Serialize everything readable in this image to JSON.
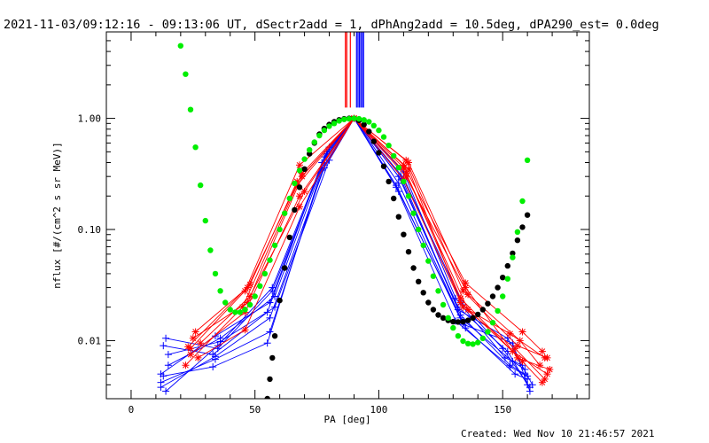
{
  "chart_data": {
    "type": "scatter",
    "title": "2021-11-03/09:12:16 - 09:13:06 UT, dSectr2add = 1, dPhAng2add = 10.5deg, dPA290_est=  0.0deg",
    "xlabel": "PA [deg]",
    "ylabel": "nflux [#/(cm^2 s sr MeV)]",
    "xlim": [
      -10,
      185
    ],
    "ylim": [
      0.003,
      6.0
    ],
    "yscale": "log",
    "grid": false,
    "xticks": [
      {
        "v": 0,
        "label": "0"
      },
      {
        "v": 50,
        "label": "50"
      },
      {
        "v": 100,
        "label": "100"
      },
      {
        "v": 150,
        "label": "150"
      }
    ],
    "yticks": [
      {
        "v": 0.01,
        "label": "0.01"
      },
      {
        "v": 0.1,
        "label": "0.10"
      },
      {
        "v": 1.0,
        "label": "1.00"
      }
    ],
    "colors": {
      "red": "#ff0000",
      "blue": "#0000ff",
      "green": "#00ee00",
      "black": "#000000"
    },
    "red_lines": [
      {
        "pa": [
          24,
          46,
          68,
          90,
          111,
          134,
          156,
          168
        ],
        "flux": [
          0.0085,
          0.028,
          0.38,
          1.0,
          0.42,
          0.028,
          0.009,
          0.007
        ]
      },
      {
        "pa": [
          26,
          47,
          69,
          90,
          110,
          135,
          158,
          166
        ],
        "flux": [
          0.012,
          0.03,
          0.32,
          1.0,
          0.38,
          0.033,
          0.012,
          0.008
        ]
      },
      {
        "pa": [
          22,
          45,
          67,
          90,
          112,
          133,
          154,
          168
        ],
        "flux": [
          0.006,
          0.02,
          0.25,
          1.0,
          0.35,
          0.022,
          0.008,
          0.005
        ]
      },
      {
        "pa": [
          28,
          48,
          70,
          90,
          111,
          136,
          157,
          165
        ],
        "flux": [
          0.0095,
          0.025,
          0.22,
          1.0,
          0.3,
          0.026,
          0.01,
          0.006
        ]
      },
      {
        "pa": [
          24,
          46,
          68,
          90,
          110,
          134,
          155,
          167
        ],
        "flux": [
          0.0075,
          0.018,
          0.2,
          1.0,
          0.28,
          0.02,
          0.0085,
          0.0045
        ]
      },
      {
        "pa": [
          25,
          47,
          69,
          90,
          112,
          135,
          156,
          169
        ],
        "flux": [
          0.0105,
          0.022,
          0.3,
          1.0,
          0.4,
          0.03,
          0.007,
          0.0055
        ]
      },
      {
        "pa": [
          27,
          46,
          68,
          90,
          111,
          133,
          158,
          166
        ],
        "flux": [
          0.007,
          0.0125,
          0.16,
          1.0,
          0.32,
          0.024,
          0.0065,
          0.0042
        ]
      },
      {
        "pa": [
          23,
          48,
          67,
          90,
          110,
          136,
          153,
          167
        ],
        "flux": [
          0.0088,
          0.032,
          0.27,
          1.0,
          0.36,
          0.019,
          0.0115,
          0.007
        ]
      }
    ],
    "blue_lines": [
      {
        "pa": [
          12,
          34,
          56,
          78,
          90,
          108,
          132,
          152,
          160
        ],
        "flux": [
          0.005,
          0.011,
          0.022,
          0.45,
          1.0,
          0.3,
          0.02,
          0.008,
          0.004
        ]
      },
      {
        "pa": [
          14,
          35,
          57,
          79,
          90,
          109,
          133,
          153,
          159
        ],
        "flux": [
          0.0035,
          0.009,
          0.03,
          0.5,
          1.0,
          0.28,
          0.017,
          0.006,
          0.005
        ]
      },
      {
        "pa": [
          13,
          33,
          55,
          77,
          90,
          107,
          134,
          154,
          161
        ],
        "flux": [
          0.009,
          0.0075,
          0.018,
          0.4,
          1.0,
          0.25,
          0.014,
          0.0095,
          0.0035
        ]
      },
      {
        "pa": [
          15,
          36,
          58,
          80,
          90,
          110,
          131,
          151,
          158
        ],
        "flux": [
          0.006,
          0.0105,
          0.025,
          0.55,
          1.0,
          0.33,
          0.024,
          0.007,
          0.006
        ]
      },
      {
        "pa": [
          12,
          34,
          56,
          78,
          90,
          108,
          135,
          155,
          160
        ],
        "flux": [
          0.0042,
          0.0068,
          0.012,
          0.38,
          1.0,
          0.22,
          0.013,
          0.005,
          0.0045
        ]
      },
      {
        "pa": [
          14,
          35,
          57,
          79,
          90,
          109,
          132,
          152,
          162
        ],
        "flux": [
          0.0105,
          0.0085,
          0.028,
          0.48,
          1.0,
          0.3,
          0.019,
          0.0105,
          0.004
        ]
      },
      {
        "pa": [
          13,
          33,
          55,
          77,
          90,
          108,
          133,
          154,
          159
        ],
        "flux": [
          0.0048,
          0.0058,
          0.0095,
          0.35,
          1.0,
          0.26,
          0.016,
          0.0065,
          0.0055
        ]
      },
      {
        "pa": [
          15,
          36,
          58,
          80,
          90,
          110,
          134,
          150,
          161
        ],
        "flux": [
          0.0075,
          0.0098,
          0.02,
          0.42,
          1.0,
          0.29,
          0.021,
          0.0085,
          0.0038
        ]
      },
      {
        "pa": [
          12,
          34,
          56,
          78,
          90,
          107,
          131,
          153,
          160
        ],
        "flux": [
          0.0038,
          0.0072,
          0.016,
          0.36,
          1.0,
          0.24,
          0.015,
          0.0058,
          0.0048
        ]
      }
    ],
    "green_fit": {
      "pa": [
        20,
        22,
        24,
        26,
        28,
        30,
        32,
        34,
        36,
        38,
        40,
        42,
        44,
        46,
        48,
        50,
        52,
        54,
        56,
        58,
        60,
        62,
        64,
        66,
        68,
        70,
        72,
        74,
        76,
        78,
        80,
        82,
        84,
        86,
        88,
        90,
        92,
        94,
        96,
        98,
        100,
        102,
        104,
        106,
        108,
        110,
        112,
        114,
        116,
        118,
        120,
        122,
        124,
        126,
        128,
        130,
        132,
        134,
        136,
        138,
        140,
        142,
        144,
        146,
        148,
        150,
        152,
        154,
        156,
        158,
        160
      ],
      "flux": [
        4.5,
        2.5,
        1.2,
        0.55,
        0.25,
        0.12,
        0.065,
        0.04,
        0.028,
        0.022,
        0.019,
        0.018,
        0.018,
        0.019,
        0.021,
        0.025,
        0.031,
        0.04,
        0.053,
        0.072,
        0.1,
        0.14,
        0.19,
        0.26,
        0.34,
        0.43,
        0.52,
        0.61,
        0.7,
        0.78,
        0.85,
        0.9,
        0.95,
        0.98,
        0.99,
        1.0,
        0.99,
        0.97,
        0.93,
        0.86,
        0.78,
        0.68,
        0.57,
        0.46,
        0.36,
        0.27,
        0.2,
        0.14,
        0.1,
        0.072,
        0.052,
        0.038,
        0.028,
        0.021,
        0.016,
        0.013,
        0.011,
        0.0099,
        0.0094,
        0.0093,
        0.0096,
        0.0105,
        0.012,
        0.0145,
        0.0185,
        0.025,
        0.036,
        0.056,
        0.095,
        0.18,
        0.42
      ]
    },
    "black_fit": {
      "pa": [
        55,
        56,
        57,
        58,
        60,
        62,
        64,
        66,
        68,
        70,
        72,
        74,
        76,
        78,
        80,
        82,
        84,
        86,
        88,
        90,
        92,
        94,
        96,
        98,
        100,
        102,
        104,
        106,
        108,
        110,
        112,
        114,
        116,
        118,
        120,
        122,
        124,
        126,
        128,
        130,
        132,
        134,
        136,
        138,
        140,
        142,
        144,
        146,
        148,
        150,
        152,
        154,
        156,
        158,
        160
      ],
      "flux": [
        0.003,
        0.0045,
        0.007,
        0.011,
        0.023,
        0.045,
        0.085,
        0.15,
        0.24,
        0.35,
        0.48,
        0.6,
        0.72,
        0.81,
        0.88,
        0.93,
        0.97,
        0.99,
        1.0,
        1.0,
        0.96,
        0.88,
        0.76,
        0.62,
        0.49,
        0.37,
        0.27,
        0.19,
        0.13,
        0.09,
        0.063,
        0.045,
        0.034,
        0.027,
        0.022,
        0.019,
        0.017,
        0.016,
        0.0152,
        0.0148,
        0.0147,
        0.0148,
        0.0152,
        0.016,
        0.0172,
        0.019,
        0.0215,
        0.025,
        0.03,
        0.037,
        0.047,
        0.061,
        0.08,
        0.105,
        0.135
      ]
    },
    "vertical_markers": [
      {
        "pa": 86.5,
        "color": "#ff0000",
        "count": 2
      },
      {
        "pa": 88.5,
        "color": "#ff0000",
        "count": 1
      },
      {
        "pa": 91,
        "color": "#0000ff",
        "count": 6
      }
    ]
  },
  "footer": {
    "created": "Created: Wed Nov 10 21:46:57 2021"
  }
}
